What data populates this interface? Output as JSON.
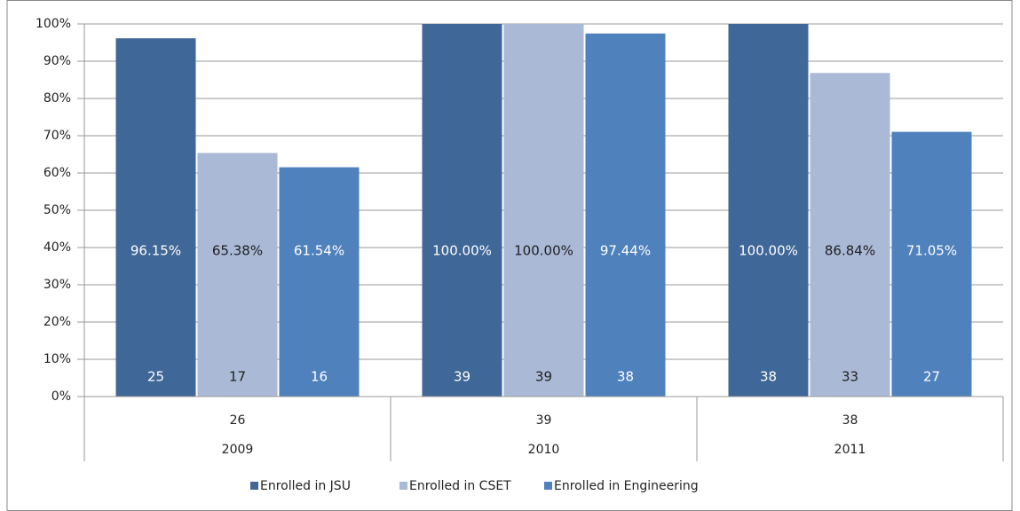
{
  "chart_data": {
    "type": "bar",
    "categories": [
      "2009",
      "2010",
      "2011"
    ],
    "category_totals": [
      26,
      39,
      38
    ],
    "series": [
      {
        "name": "Enrolled in JSU",
        "color": "#3f6797",
        "label_color": "#ffffff",
        "values": [
          96.15,
          100,
          100
        ],
        "value_labels": [
          "96.15%",
          "100.00%",
          "100.00%"
        ],
        "counts": [
          25,
          39,
          38
        ]
      },
      {
        "name": "Enrolled in CSET",
        "color": "#a9b9d6",
        "label_color": "#1f1f1f",
        "values": [
          65.38,
          100,
          86.84
        ],
        "value_labels": [
          "65.38%",
          "100.00%",
          "86.84%"
        ],
        "counts": [
          17,
          39,
          33
        ]
      },
      {
        "name": "Enrolled in Engineering",
        "color": "#4f81bd",
        "label_color": "#ffffff",
        "values": [
          61.54,
          97.44,
          71.05
        ],
        "value_labels": [
          "61.54%",
          "97.44%",
          "71.05%"
        ],
        "counts": [
          16,
          38,
          27
        ]
      }
    ],
    "ylim": [
      0,
      100
    ],
    "yticks": [
      {
        "value": 0,
        "label": "0%"
      },
      {
        "value": 10,
        "label": "10%"
      },
      {
        "value": 20,
        "label": "20%"
      },
      {
        "value": 30,
        "label": "30%"
      },
      {
        "value": 40,
        "label": "40%"
      },
      {
        "value": 50,
        "label": "50%"
      },
      {
        "value": 60,
        "label": "60%"
      },
      {
        "value": 70,
        "label": "70%"
      },
      {
        "value": 80,
        "label": "80%"
      },
      {
        "value": 90,
        "label": "90%"
      },
      {
        "value": 100,
        "label": "100%"
      }
    ],
    "grid": true,
    "legend": "bottom"
  }
}
